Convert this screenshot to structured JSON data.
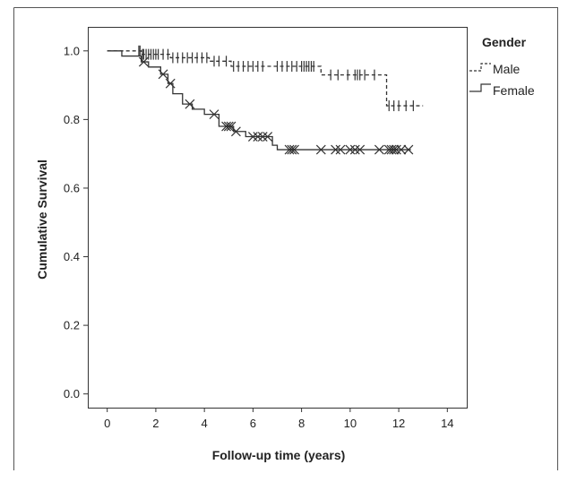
{
  "chart_data": {
    "type": "line",
    "title": "",
    "xlabel": "Follow-up time (years)",
    "ylabel": "Cumulative Survival",
    "xlim": [
      -0.8,
      14.8
    ],
    "ylim": [
      -0.04,
      1.07
    ],
    "x_ticks": [
      0,
      2,
      4,
      6,
      8,
      10,
      12,
      14
    ],
    "y_ticks": [
      0.0,
      0.2,
      0.4,
      0.6,
      0.8,
      1.0
    ],
    "y_tick_labels": [
      "0.0",
      "0.2",
      "0.4",
      "0.6",
      "0.8",
      "1.0"
    ],
    "x_tick_labels": [
      "0",
      "2",
      "4",
      "6",
      "8",
      "10",
      "12",
      "14"
    ],
    "grid": false,
    "legend": {
      "title": "Gender",
      "position": "top-right-outside",
      "entries": [
        "Male",
        "Female"
      ]
    },
    "series": [
      {
        "name": "Male",
        "style": "dashed",
        "censor_marker": "+",
        "steps": [
          [
            0,
            1.0
          ],
          [
            1.4,
            0.99
          ],
          [
            2.6,
            0.98
          ],
          [
            4.2,
            0.97
          ],
          [
            5.1,
            0.955
          ],
          [
            8.8,
            0.93
          ],
          [
            11.5,
            0.84
          ],
          [
            13.0,
            0.84
          ]
        ],
        "censored": [
          1.3,
          1.35,
          1.45,
          1.5,
          1.6,
          1.7,
          1.8,
          1.9,
          2.0,
          2.1,
          2.3,
          2.5,
          2.7,
          2.9,
          3.1,
          3.3,
          3.5,
          3.7,
          3.9,
          4.1,
          4.4,
          4.6,
          4.9,
          5.2,
          5.4,
          5.6,
          5.8,
          6.0,
          6.2,
          6.4,
          7.0,
          7.2,
          7.4,
          7.6,
          7.8,
          8.0,
          8.1,
          8.2,
          8.3,
          8.4,
          8.5,
          9.2,
          9.5,
          9.9,
          10.2,
          10.3,
          10.4,
          10.6,
          11.0,
          11.6,
          11.8,
          12.0,
          12.3,
          12.6
        ]
      },
      {
        "name": "Female",
        "style": "solid",
        "censor_marker": "x",
        "steps": [
          [
            0,
            1.0
          ],
          [
            0.6,
            0.985
          ],
          [
            1.4,
            0.968
          ],
          [
            1.7,
            0.953
          ],
          [
            2.2,
            0.932
          ],
          [
            2.5,
            0.905
          ],
          [
            2.7,
            0.875
          ],
          [
            3.1,
            0.845
          ],
          [
            3.5,
            0.83
          ],
          [
            4.0,
            0.815
          ],
          [
            4.6,
            0.78
          ],
          [
            5.2,
            0.765
          ],
          [
            5.7,
            0.75
          ],
          [
            6.8,
            0.725
          ],
          [
            7.0,
            0.712
          ],
          [
            12.5,
            0.712
          ]
        ],
        "censored": [
          1.5,
          2.3,
          2.6,
          3.4,
          4.4,
          4.9,
          5.0,
          5.1,
          5.3,
          6.0,
          6.2,
          6.4,
          6.6,
          7.5,
          7.6,
          7.7,
          8.8,
          9.4,
          9.6,
          10.0,
          10.2,
          10.4,
          11.2,
          11.6,
          11.7,
          11.8,
          11.9,
          12.1,
          12.4
        ]
      }
    ]
  }
}
